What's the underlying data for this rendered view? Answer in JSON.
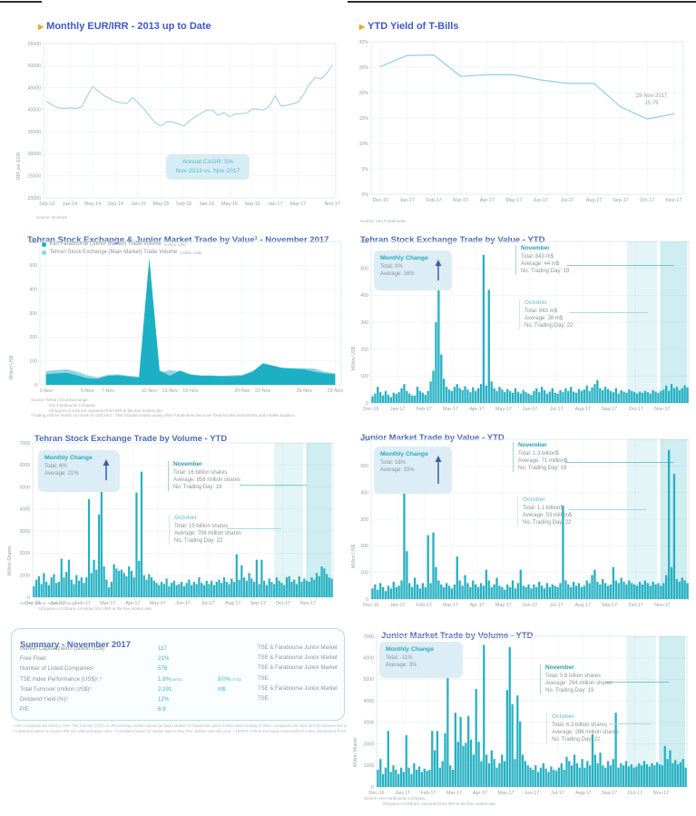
{
  "chart_data": [
    {
      "id": "monthly-eur-irr",
      "type": "line",
      "title": "Monthly EUR/IRR - 2013 up to Date",
      "ylabel": "IRR per EUR",
      "ylim": [
        20000,
        55000
      ],
      "ytick_step": 5000,
      "color": "#a9d4e4",
      "xticks": [
        "Sep-13",
        "Jan-14",
        "May-14",
        "Sep-14",
        "Jan-15",
        "May-15",
        "Sep-15",
        "Jan-16",
        "May-16",
        "Sep-16",
        "Jan-17",
        "May-17",
        "Nov-17"
      ],
      "xtick_pos": [
        0,
        0.08,
        0.16,
        0.24,
        0.32,
        0.4,
        0.48,
        0.56,
        0.64,
        0.72,
        0.8,
        0.88,
        1.0
      ],
      "values": [
        41800,
        41000,
        40400,
        40300,
        40400,
        40300,
        40500,
        43000,
        45300,
        44200,
        43200,
        42500,
        41800,
        41600,
        41400,
        42800,
        41500,
        40200,
        38500,
        37000,
        36300,
        37300,
        37200,
        36800,
        36300,
        37500,
        38400,
        39200,
        39900,
        39900,
        38700,
        39400,
        38400,
        39000,
        39100,
        39200,
        40200,
        40100,
        39900,
        40800,
        43200,
        40800,
        41000,
        41300,
        41700,
        43500,
        45800,
        47300,
        47000,
        48200,
        50000
      ],
      "annotation": {
        "line1": "Annual CAGR: 5%",
        "line2": "Nov 2013 vs. Nov 2017"
      },
      "source": "Source: Bonbast"
    },
    {
      "id": "ytd-tbill-yield",
      "type": "line",
      "title": "YTD Yield of T-Bills",
      "ylim": [
        0,
        30
      ],
      "ytick_step": 5,
      "ysuffix": "%",
      "color": "#8fd0e2",
      "xticks": [
        "Dec-16",
        "Jan-17",
        "Feb-17",
        "Mar-17",
        "Apr-17",
        "May-17",
        "Jun-17",
        "Jul-17",
        "Aug-17",
        "Sep-17",
        "Oct-17",
        "Nov-17"
      ],
      "values": [
        25.1,
        27.3,
        27.4,
        23.2,
        23.5,
        23.5,
        22.5,
        21.8,
        21.8,
        17.2,
        14.8,
        15.8
      ],
      "annotation": {
        "line1": "29-Nov-2017",
        "line2": "15.79"
      },
      "source": "Source: Iran Farabourse"
    },
    {
      "id": "tse-junior-trade-value-november",
      "type": "area",
      "title": "Tehran Stock Exchange & Junior Market Trade by Value¹ - November 2017",
      "ylabel": "Million US$",
      "ylim": [
        0,
        600
      ],
      "ytick_step": 100,
      "legend": [
        {
          "label": "Iran Farabourse (Junior Market) Trade Volume",
          "suffix": "(million US$)",
          "color": "#1db0c4"
        },
        {
          "label": "Tehran Stock Exchange (Main Market) Trade Volume",
          "suffix": "(million US$)",
          "color": "#92d5e2"
        }
      ],
      "xticks": [
        "1-Nov",
        "5-Nov",
        "7-Nov",
        "11-Nov",
        "13-Nov",
        "15-Nov",
        "20-Nov",
        "22-Nov",
        "26-Nov",
        "29-Nov"
      ],
      "xtick_pos": [
        0,
        0.1429,
        0.2143,
        0.3571,
        0.4286,
        0.5,
        0.6786,
        0.75,
        0.8929,
        1.0
      ],
      "series": [
        {
          "name": "Tehran Stock Exchange (Main Market)",
          "color": "#92d5e2",
          "values": [
            58,
            62,
            65,
            55,
            40,
            32,
            42,
            44,
            38,
            35,
            45,
            50,
            62,
            55,
            45,
            40,
            40,
            38,
            40,
            42,
            58,
            80,
            72,
            72,
            70,
            70,
            68,
            55,
            48
          ]
        },
        {
          "name": "Iran Farabourse (Junior Market)",
          "color": "#1db0c4",
          "values": [
            45,
            48,
            50,
            40,
            28,
            25,
            38,
            40,
            35,
            30,
            530,
            60,
            38,
            60,
            42,
            38,
            38,
            36,
            36,
            38,
            55,
            90,
            80,
            70,
            68,
            65,
            55,
            48,
            45
          ]
        }
      ],
      "sources": [
        "Source: Tehran Stock Exchange",
        "Iran Farabourse Company",
        "All figures in US$ are converted from IRR at the free market rate",
        "¹Trading volume month on month in US$ term - TSE includes mainly equity while Farabourse has more fixed income instruments and smaller equities."
      ]
    },
    {
      "id": "tse-trade-value-ytd",
      "type": "bar",
      "title": "Tehran Stock Exchange Trade by Value - YTD",
      "ylabel": "Million US$",
      "ylim": [
        0,
        600
      ],
      "ytick_step": 100,
      "color": "#27b1c3",
      "xticks": [
        "Dec-16",
        "Jan-17",
        "Feb-17",
        "Mar-17",
        "Apr-17",
        "May-17",
        "Jun-17",
        "Jul-17",
        "Aug-17",
        "Sep-17",
        "Oct-17",
        "Nov-17"
      ],
      "values": [
        25,
        35,
        60,
        40,
        28,
        45,
        30,
        22,
        38,
        33,
        40,
        55,
        70,
        45,
        35,
        28,
        28,
        60,
        45,
        38,
        30,
        45,
        80,
        120,
        300,
        470,
        180,
        90,
        60,
        50,
        45,
        60,
        70,
        55,
        48,
        62,
        50,
        40,
        58,
        45,
        55,
        70,
        550,
        65,
        420,
        80,
        55,
        45,
        60,
        50,
        40,
        52,
        45,
        38,
        55,
        42,
        35,
        48,
        40,
        35,
        30,
        45,
        55,
        40,
        60,
        48,
        35,
        42,
        55,
        38,
        35,
        48,
        40,
        55,
        45,
        60,
        42,
        38,
        52,
        45,
        50,
        65,
        45,
        58,
        70,
        85,
        55,
        48,
        60,
        52,
        45,
        40,
        55,
        35,
        48,
        42,
        38,
        50,
        45,
        40,
        35,
        42,
        38,
        45,
        40,
        35,
        48,
        42,
        38,
        45,
        50,
        65,
        45,
        70,
        55,
        60,
        48,
        55,
        65,
        58
      ],
      "monthly_change": {
        "label": "Monthly Change",
        "total": "Total: 0%",
        "average": "Average: 16%",
        "arrow": "up"
      },
      "november": {
        "title": "November",
        "lines": [
          "Total: 843 m$",
          "Average: 44 m$",
          "No. Trading Day:  19"
        ]
      },
      "october": {
        "title": "October",
        "lines": [
          "Total: 843 m$",
          "Average: 38 m$",
          "No. Trading Day:  22"
        ]
      }
    },
    {
      "id": "tse-trade-volume-ytd",
      "type": "bar",
      "title": "Tehran Stock Exchange Trade by Volume - YTD",
      "ylabel": "Million Shares",
      "ylim": [
        0,
        7000
      ],
      "ytick_step": 1000,
      "color": "#27b1c3",
      "xticks": [
        "Dec-16",
        "Jan-17",
        "Feb-17",
        "Mar-17",
        "Apr-17",
        "May-17",
        "Jun-17",
        "Jul-17",
        "Aug-17",
        "Sep-17",
        "Oct-17",
        "Nov-17"
      ],
      "values": [
        500,
        800,
        950,
        600,
        1100,
        700,
        550,
        900,
        1050,
        650,
        700,
        1750,
        900,
        1150,
        1700,
        800,
        600,
        1000,
        750,
        900,
        650,
        900,
        4450,
        1100,
        1700,
        1250,
        3750,
        4900,
        1400,
        800,
        450,
        700,
        1500,
        1300,
        1200,
        1250,
        1100,
        950,
        1400,
        1200,
        900,
        4750,
        1650,
        5700,
        1000,
        800,
        1050,
        900,
        750,
        650,
        550,
        700,
        600,
        850,
        500,
        650,
        750,
        550,
        600,
        700,
        500,
        650,
        800,
        550,
        700,
        600,
        900,
        650,
        550,
        750,
        600,
        750,
        550,
        700,
        800,
        650,
        900,
        700,
        600,
        850,
        700,
        1950,
        800,
        1450,
        900,
        750,
        1100,
        850,
        700,
        1700,
        600,
        1700,
        750,
        550,
        850,
        700,
        600,
        900,
        750,
        650,
        550,
        900,
        950,
        700,
        800,
        600,
        950,
        700,
        850,
        750,
        700,
        900,
        800,
        1100,
        950,
        1400,
        1300,
        1050,
        900,
        850
      ],
      "monthly_change": {
        "label": "Monthly Change",
        "total": "Total: 6%",
        "average": "Average: 21%",
        "arrow": "up"
      },
      "november": {
        "title": "November",
        "lines": [
          "Total: 16 billion shares",
          "Average: 858 million shares",
          "No. Trading Day: 19"
        ]
      },
      "october": {
        "title": "October",
        "lines": [
          "Total: 15 billion shares",
          "Average: 706 million shares",
          "No. Trading Day: 22"
        ]
      },
      "sources": [
        "Source: Tehran Stock Exchange",
        "All figures in US$ are converted from IRR at the free market rate"
      ]
    },
    {
      "id": "junior-market-trade-value-ytd",
      "type": "bar",
      "title": "Junior Market Trade by Value - YTD",
      "ylabel": "Million US$",
      "ylim": [
        0,
        600
      ],
      "ytick_step": 100,
      "color": "#27b1c3",
      "xticks": [
        "Dec-16",
        "Jan-17",
        "Feb-17",
        "Mar-17",
        "Apr-17",
        "May-17",
        "Jun-17",
        "Jul-17",
        "Aug-17",
        "Sep-17",
        "Oct-17",
        "Nov-17"
      ],
      "values": [
        40,
        55,
        35,
        60,
        45,
        30,
        50,
        40,
        65,
        45,
        50,
        70,
        400,
        180,
        60,
        45,
        80,
        55,
        40,
        60,
        45,
        240,
        60,
        250,
        120,
        70,
        55,
        45,
        60,
        50,
        40,
        55,
        160,
        70,
        50,
        90,
        60,
        45,
        70,
        55,
        45,
        60,
        50,
        110,
        70,
        45,
        55,
        80,
        50,
        45,
        35,
        55,
        45,
        70,
        40,
        60,
        110,
        50,
        45,
        55,
        40,
        55,
        45,
        65,
        50,
        40,
        60,
        45,
        55,
        50,
        45,
        60,
        350,
        70,
        55,
        45,
        65,
        50,
        60,
        45,
        50,
        70,
        60,
        90,
        110,
        65,
        55,
        75,
        60,
        50,
        55,
        120,
        70,
        60,
        80,
        65,
        55,
        70,
        60,
        55,
        50,
        65,
        55,
        70,
        60,
        50,
        65,
        55,
        60,
        50,
        60,
        90,
        560,
        120,
        470,
        75,
        65,
        80,
        70,
        60
      ],
      "monthly_change": {
        "label": "Monthly Change",
        "total": "Total: 18%",
        "average": "Average: 33%",
        "arrow": "up"
      },
      "november": {
        "title": "November",
        "lines": [
          "Total: 1.3 billion$",
          "Average: 71 million$",
          "No. Trading Day: 19"
        ]
      },
      "october": {
        "title": "October",
        "lines": [
          "Total: 1.1 billion$",
          "Average: 53 million$",
          "No. Trading Day: 22"
        ]
      }
    },
    {
      "id": "junior-market-trade-volume-ytd",
      "type": "bar",
      "title": "Junior Market Trade by Volume - YTD",
      "ylabel": "Million Shares",
      "ylim": [
        0,
        7000
      ],
      "ytick_step": 1000,
      "color": "#27b1c3",
      "xticks": [
        "Dec-16",
        "Jan-17",
        "Feb-17",
        "Mar-17",
        "Apr-17",
        "May-17",
        "Jun-17",
        "Jul-17",
        "Aug-17",
        "Sep-17",
        "Oct-17",
        "Nov-17"
      ],
      "values": [
        800,
        1300,
        600,
        900,
        2600,
        700,
        1000,
        800,
        600,
        900,
        700,
        2400,
        900,
        600,
        1100,
        800,
        950,
        700,
        850,
        750,
        800,
        2600,
        1700,
        2600,
        900,
        1200,
        2500,
        6300,
        1000,
        800,
        3450,
        2100,
        3250,
        1900,
        2050,
        3300,
        2200,
        1500,
        4550,
        2100,
        1200,
        6600,
        1500,
        1100,
        1700,
        1300,
        900,
        1100,
        1500,
        1200,
        4500,
        6500,
        3850,
        1300,
        4250,
        3050,
        1500,
        1200,
        1000,
        900,
        800,
        1000,
        700,
        900,
        1100,
        850,
        700,
        950,
        800,
        750,
        900,
        1100,
        800,
        1400,
        1200,
        1000,
        1500,
        1100,
        900,
        1300,
        900,
        1200,
        1000,
        2450,
        1500,
        1100,
        1600,
        1000,
        900,
        1200,
        1000,
        1300,
        3450,
        900,
        1100,
        1000,
        1200,
        950,
        1050,
        900,
        950,
        1100,
        1000,
        1200,
        1050,
        950,
        1100,
        1000,
        1150,
        1050,
        1000,
        1900,
        1300,
        1700,
        1100,
        1250,
        1050,
        1150,
        1300,
        900
      ],
      "monthly_change": {
        "label": "Monthly Change",
        "total": "Total: -11%",
        "average": "Average: 3%",
        "arrow": "none"
      },
      "november": {
        "title": "November",
        "lines": [
          "Total: 5.6 billion shares",
          "Average: 294 million shares",
          "No. Trading Day: 19"
        ]
      },
      "october": {
        "title": "October",
        "lines": [
          "Total: 6.3 billion shares",
          "Average: 286 million shares",
          "No. Trading Day: 22"
        ]
      },
      "sources": [
        "Source: Iran Farabourse Company",
        "All figures in US$ are converted from IRR at the free market rate"
      ]
    }
  ],
  "summary": {
    "title": "Summary - November 2017",
    "rows": [
      {
        "label": "Market Capitalization (billion US$)",
        "v1": "117",
        "v1s": "",
        "v2": "",
        "v2s": "",
        "scope": "TSE & Farabourse Junior Market"
      },
      {
        "label": "Free Float",
        "v1": "21%",
        "v1s": "",
        "v2": "",
        "v2s": "",
        "scope": "TSE & Farabourse Junior Market"
      },
      {
        "label": "Number of Listed Companies¹",
        "v1": "576",
        "v1s": "",
        "v2": "",
        "v2s": "",
        "scope": "TSE & Farabourse Junior Market"
      },
      {
        "label": "TSE Index Performance (US$)²,⁴",
        "v1": "1.9%",
        "v1s": "(MTD)",
        "v2": "9.0%",
        "v2s": "(YTD)",
        "scope": "TSE"
      },
      {
        "label": "Total Turnover (million US$)²",
        "v1": "2,191",
        "v1s": "",
        "v2": "m$",
        "v2s": "",
        "scope": "TSE & Farabourse Junior Market"
      },
      {
        "label": "Dividend Yield (%)³",
        "v1": "12%",
        "v1s": "",
        "v2": "",
        "v2s": "",
        "scope": "TSE"
      },
      {
        "label": "P/E",
        "v1": "6.9",
        "v1s": "",
        "v2": "",
        "v2s": "",
        "scope": ""
      }
    ],
    "footnotes": [
      "¹ 155 companies are listed in Over-The-Counter (OTC) or off-exchange market named as 'Base Market' in Farabourse junior market which trading of these companies are done directly between two parties.",
      "² Calculated based on market IRR per US$ exchange rates. ³ Calculated based on market data ending 'Dei', Iranian calendar year. ⁴ TEDPIX Tehran Exchange Dividend/Price Index (Dividend & Price Index)"
    ]
  }
}
